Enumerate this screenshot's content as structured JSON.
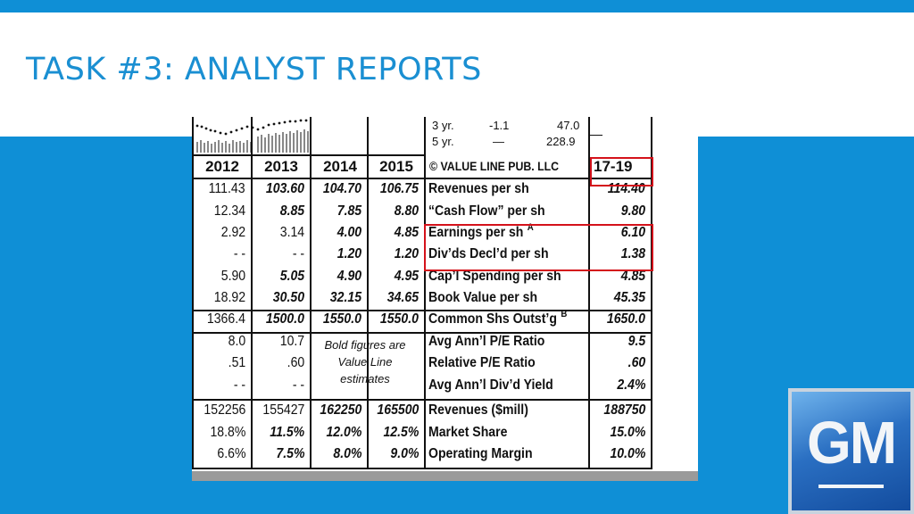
{
  "slide": {
    "title": "TASK #3: ANALYST REPORTS"
  },
  "report": {
    "history_rows": [
      {
        "period": "3 yr.",
        "a": "-1.1",
        "b": "47.0"
      },
      {
        "period": "5 yr.",
        "a": "—",
        "b": "228.9"
      }
    ],
    "years": [
      "2012",
      "2013",
      "2014",
      "2015"
    ],
    "copyright": "© VALUE LINE PUB. LLC",
    "projection_year": "17-19",
    "rows": [
      {
        "label": "Revenues per sh",
        "values": [
          "111.43",
          "103.60",
          "104.70",
          "106.75"
        ],
        "proj": "114.40"
      },
      {
        "label": "“Cash Flow” per sh",
        "values": [
          "12.34",
          "8.85",
          "7.85",
          "8.80"
        ],
        "proj": "9.80"
      },
      {
        "label": "Earnings per sh",
        "sup": "A",
        "values": [
          "2.92",
          "3.14",
          "4.00",
          "4.85"
        ],
        "proj": "6.10"
      },
      {
        "label": "Div’ds Decl’d per sh",
        "values": [
          "- -",
          "- -",
          "1.20",
          "1.20"
        ],
        "proj": "1.38"
      },
      {
        "label": "Cap’l Spending per sh",
        "values": [
          "5.90",
          "5.05",
          "4.90",
          "4.95"
        ],
        "proj": "4.85"
      },
      {
        "label": "Book Value per sh",
        "values": [
          "18.92",
          "30.50",
          "32.15",
          "34.65"
        ],
        "proj": "45.35"
      },
      {
        "label": "Common Shs Outst’g",
        "sup": "B",
        "values": [
          "1366.4",
          "1500.0",
          "1550.0",
          "1550.0"
        ],
        "proj": "1650.0"
      },
      {
        "label": "Avg Ann’l P/E Ratio",
        "values": [
          "8.0",
          "10.7",
          "",
          ""
        ],
        "proj": "9.5"
      },
      {
        "label": "Relative P/E Ratio",
        "values": [
          ".51",
          ".60",
          "",
          ""
        ],
        "proj": ".60"
      },
      {
        "label": "Avg Ann’l Div’d Yield",
        "values": [
          "- -",
          "- -",
          "",
          ""
        ],
        "proj": "2.4%"
      },
      {
        "label": "Revenues ($mill)",
        "values": [
          "152256",
          "155427",
          "162250",
          "165500"
        ],
        "proj": "188750"
      },
      {
        "label": "Market Share",
        "values": [
          "18.8%",
          "11.5%",
          "12.0%",
          "12.5%"
        ],
        "proj": "15.0%"
      },
      {
        "label": "Operating Margin",
        "values": [
          "6.6%",
          "7.5%",
          "8.0%",
          "9.0%"
        ],
        "proj": "10.0%"
      }
    ],
    "estimate_note": "Bold figures are Value Line estimates"
  },
  "logo": {
    "text": "GM",
    "colors": {
      "top": "#6fb3ec",
      "bottom": "#134c9e"
    }
  },
  "colors": {
    "accent": "#0f8fd6",
    "title": "#1a8fd2",
    "highlight": "#d4121b"
  }
}
